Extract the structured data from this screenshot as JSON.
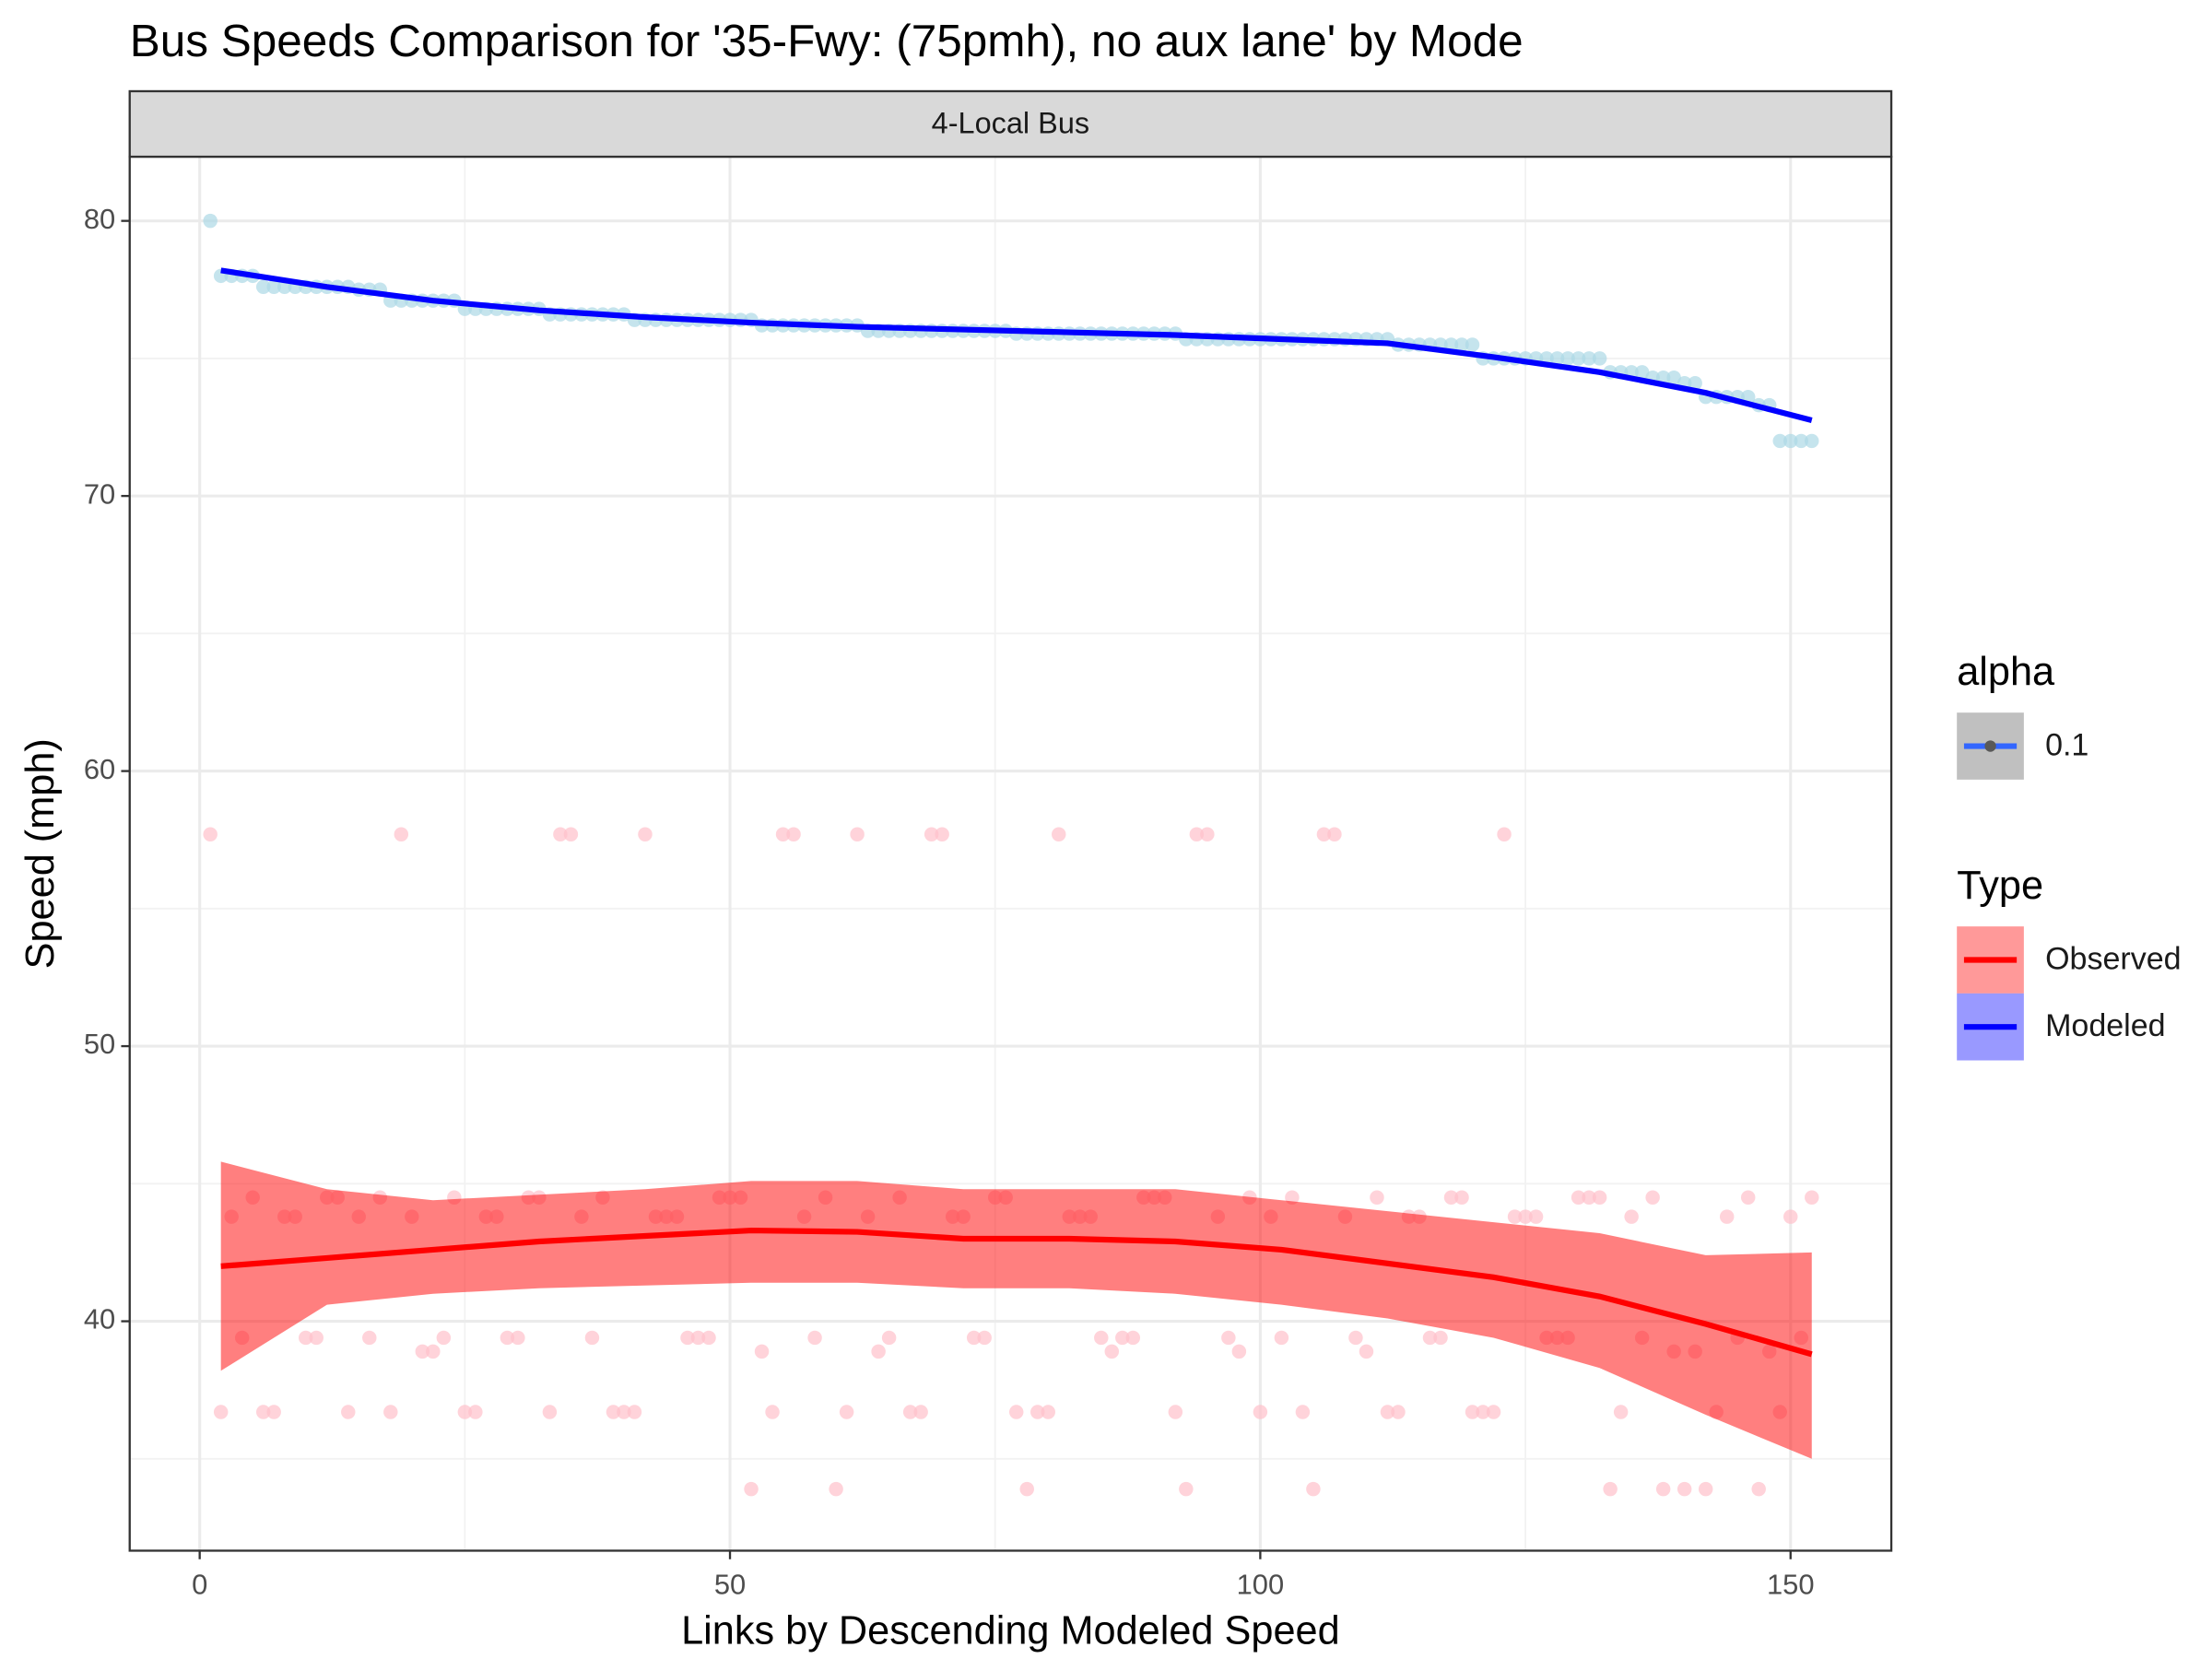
{
  "chart_data": {
    "type": "scatter",
    "title": "Bus Speeds Comparison for '35-Fwy: (75pmh), no aux lane' by Mode",
    "facet_label": "4-Local Bus",
    "x_label": "Links by Descending Modeled Speed",
    "y_label": "Speed (mph)",
    "xlim": [
      -6.6,
      159.5
    ],
    "ylim": [
      31.66,
      82.33
    ],
    "xticks": [
      0,
      50,
      100,
      150
    ],
    "yticks": [
      40,
      50,
      60,
      70,
      80
    ],
    "x_minor_grid": [
      25,
      75,
      125
    ],
    "y_minor_grid": [
      35,
      45,
      55,
      65,
      75
    ],
    "grid": true,
    "legend_position": "right",
    "alpha_legend": {
      "title": "alpha",
      "label": 0.1
    },
    "legend_title": "Type",
    "x": [
      1,
      2,
      3,
      4,
      5,
      6,
      7,
      8,
      9,
      10,
      11,
      12,
      13,
      14,
      15,
      16,
      17,
      18,
      19,
      20,
      21,
      22,
      23,
      24,
      25,
      26,
      27,
      28,
      29,
      30,
      31,
      32,
      33,
      34,
      35,
      36,
      37,
      38,
      39,
      40,
      41,
      42,
      43,
      44,
      45,
      46,
      47,
      48,
      49,
      50,
      51,
      52,
      53,
      54,
      55,
      56,
      57,
      58,
      59,
      60,
      61,
      62,
      63,
      64,
      65,
      66,
      67,
      68,
      69,
      70,
      71,
      72,
      73,
      74,
      75,
      76,
      77,
      78,
      79,
      80,
      81,
      82,
      83,
      84,
      85,
      86,
      87,
      88,
      89,
      90,
      91,
      92,
      93,
      94,
      95,
      96,
      97,
      98,
      99,
      100,
      101,
      102,
      103,
      104,
      105,
      106,
      107,
      108,
      109,
      110,
      111,
      112,
      113,
      114,
      115,
      116,
      117,
      118,
      119,
      120,
      121,
      122,
      123,
      124,
      125,
      126,
      127,
      128,
      129,
      130,
      131,
      132,
      133,
      134,
      135,
      136,
      137,
      138,
      139,
      140,
      141,
      142,
      143,
      144,
      145,
      146,
      147,
      148,
      149,
      150,
      151,
      152
    ],
    "series": [
      {
        "name": "Observed",
        "color": "#ff0000",
        "point_color": "#ffc0cb",
        "ribbon_color": "#ff0000",
        "values": [
          57.7,
          36.7,
          43.8,
          39.4,
          44.5,
          36.7,
          36.7,
          43.8,
          43.8,
          39.4,
          39.4,
          44.5,
          44.5,
          36.7,
          43.8,
          39.4,
          44.5,
          36.7,
          57.7,
          43.8,
          38.9,
          38.9,
          39.4,
          44.5,
          36.7,
          36.7,
          43.8,
          43.8,
          39.4,
          39.4,
          44.5,
          44.5,
          36.7,
          57.7,
          57.7,
          43.8,
          39.4,
          44.5,
          36.7,
          36.7,
          36.7,
          57.7,
          43.8,
          43.8,
          43.8,
          39.4,
          39.4,
          39.4,
          44.5,
          44.5,
          44.5,
          33.9,
          38.9,
          36.7,
          57.7,
          57.7,
          43.8,
          39.4,
          44.5,
          33.9,
          36.7,
          57.7,
          43.8,
          38.9,
          39.4,
          44.5,
          36.7,
          36.7,
          57.7,
          57.7,
          43.8,
          43.8,
          39.4,
          39.4,
          44.5,
          44.5,
          36.7,
          33.9,
          36.7,
          36.7,
          57.7,
          43.8,
          43.8,
          43.8,
          39.4,
          38.9,
          39.4,
          39.4,
          44.5,
          44.5,
          44.5,
          36.7,
          33.9,
          57.7,
          57.7,
          43.8,
          39.4,
          38.9,
          44.5,
          36.7,
          43.8,
          39.4,
          44.5,
          36.7,
          33.9,
          57.7,
          57.7,
          43.8,
          39.4,
          38.9,
          44.5,
          36.7,
          36.7,
          43.8,
          43.8,
          39.4,
          39.4,
          44.5,
          44.5,
          36.7,
          36.7,
          36.7,
          57.7,
          43.8,
          43.8,
          43.8,
          39.4,
          39.4,
          39.4,
          44.5,
          44.5,
          44.5,
          33.9,
          36.7,
          43.8,
          39.4,
          44.5,
          33.9,
          38.9,
          33.9,
          38.9,
          33.9,
          36.7,
          43.8,
          39.4,
          44.5,
          33.9,
          38.9,
          36.7,
          43.8,
          39.4,
          44.5
        ],
        "smooth": {
          "x": [
            2,
            12,
            22,
            32,
            42,
            52,
            62,
            72,
            82,
            92,
            102,
            112,
            122,
            132,
            142,
            152
          ],
          "values": [
            42.0,
            42.3,
            42.6,
            42.9,
            43.1,
            43.3,
            43.25,
            43.0,
            43.0,
            42.9,
            42.6,
            42.1,
            41.6,
            40.9,
            39.9,
            38.8
          ],
          "lower": [
            38.2,
            40.6,
            41.0,
            41.2,
            41.3,
            41.4,
            41.4,
            41.2,
            41.2,
            41.0,
            40.6,
            40.1,
            39.4,
            38.3,
            36.6,
            35.0
          ],
          "upper": [
            45.8,
            44.8,
            44.4,
            44.6,
            44.8,
            45.1,
            45.1,
            44.8,
            44.8,
            44.8,
            44.4,
            44.0,
            43.6,
            43.2,
            42.4,
            42.5
          ]
        }
      },
      {
        "name": "Modeled",
        "color": "#0000ff",
        "point_color": "#add8e6",
        "ribbon_color": "#0000ff",
        "values": [
          80,
          78,
          78,
          78,
          78,
          77.6,
          77.6,
          77.6,
          77.6,
          77.6,
          77.6,
          77.6,
          77.6,
          77.6,
          77.5,
          77.5,
          77.5,
          77.1,
          77.1,
          77.1,
          77.1,
          77.1,
          77.1,
          77.1,
          76.8,
          76.8,
          76.8,
          76.8,
          76.8,
          76.8,
          76.8,
          76.8,
          76.6,
          76.6,
          76.6,
          76.6,
          76.6,
          76.6,
          76.6,
          76.6,
          76.4,
          76.4,
          76.4,
          76.4,
          76.4,
          76.4,
          76.4,
          76.4,
          76.4,
          76.4,
          76.4,
          76.4,
          76.2,
          76.2,
          76.2,
          76.2,
          76.2,
          76.2,
          76.2,
          76.2,
          76.2,
          76.2,
          76,
          76,
          76,
          76,
          76,
          76,
          76,
          76,
          76,
          76,
          76,
          76,
          76,
          76,
          75.9,
          75.9,
          75.9,
          75.9,
          75.9,
          75.9,
          75.9,
          75.9,
          75.9,
          75.9,
          75.9,
          75.9,
          75.9,
          75.9,
          75.9,
          75.9,
          75.7,
          75.7,
          75.7,
          75.7,
          75.7,
          75.7,
          75.7,
          75.7,
          75.7,
          75.7,
          75.7,
          75.7,
          75.7,
          75.7,
          75.7,
          75.7,
          75.7,
          75.7,
          75.7,
          75.7,
          75.5,
          75.5,
          75.5,
          75.5,
          75.5,
          75.5,
          75.5,
          75.5,
          75,
          75,
          75,
          75,
          75,
          75,
          75,
          75,
          75,
          75,
          75,
          75,
          74.5,
          74.5,
          74.5,
          74.5,
          74.3,
          74.3,
          74.3,
          74.1,
          74.1,
          73.6,
          73.6,
          73.6,
          73.6,
          73.6,
          73.3,
          73.3,
          72,
          72,
          72,
          72
        ],
        "smooth": {
          "x": [
            2,
            12,
            22,
            32,
            42,
            52,
            62,
            72,
            82,
            92,
            102,
            112,
            122,
            132,
            142,
            152
          ],
          "values": [
            78.2,
            77.6,
            77.1,
            76.75,
            76.5,
            76.3,
            76.15,
            76.05,
            75.95,
            75.85,
            75.7,
            75.55,
            75.05,
            74.5,
            73.75,
            72.75
          ]
        }
      }
    ]
  }
}
